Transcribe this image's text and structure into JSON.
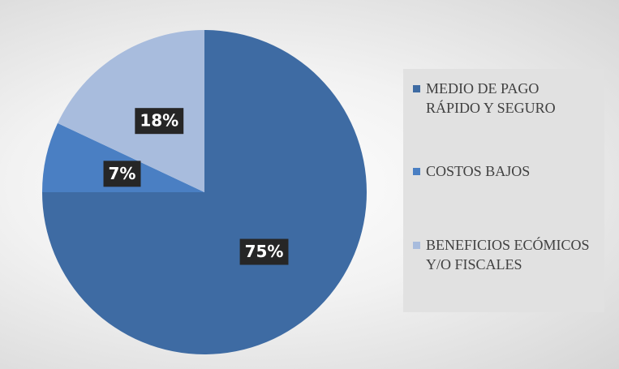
{
  "chart_data": {
    "type": "pie",
    "categories": [
      "MEDIO DE PAGO RÁPIDO Y SEGURO",
      "COSTOS BAJOS",
      "BENEFICIOS ECÓMICOS Y/O FISCALES"
    ],
    "values": [
      75,
      7,
      18
    ],
    "value_labels": [
      "75%",
      "7%",
      "18%"
    ],
    "colors": [
      "#3e6ba3",
      "#4a7fc3",
      "#a8bcdd"
    ],
    "legend": "right"
  }
}
